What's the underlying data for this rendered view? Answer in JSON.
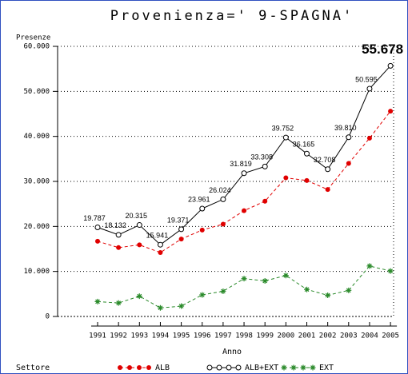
{
  "chart_data": {
    "type": "line",
    "title": "Provenienza=' 9-SPAGNA'",
    "y_label": "Presenze",
    "x_label": "Anno",
    "legend_title": "Settore",
    "grid": true,
    "categories": [
      "1991",
      "1992",
      "1993",
      "1994",
      "1995",
      "1996",
      "1997",
      "1998",
      "1999",
      "2000",
      "2001",
      "2002",
      "2003",
      "2004",
      "2005"
    ],
    "ylim": [
      0,
      60000
    ],
    "yticks": [
      {
        "value": 0,
        "label": "0"
      },
      {
        "value": 10000,
        "label": "10.000"
      },
      {
        "value": 20000,
        "label": "20.000"
      },
      {
        "value": 30000,
        "label": "30.000"
      },
      {
        "value": 40000,
        "label": "40.000"
      },
      {
        "value": 50000,
        "label": "50.000"
      },
      {
        "value": 60000,
        "label": "60.000"
      }
    ],
    "series": [
      {
        "name": "ALB",
        "color": "#e00000",
        "dash": true,
        "marker": "dot",
        "values": [
          16700,
          15300,
          15900,
          14200,
          17200,
          19200,
          20500,
          23500,
          25600,
          30800,
          30200,
          28200,
          34000,
          39600,
          45600
        ]
      },
      {
        "name": "ALB+EXT",
        "color": "#000000",
        "dash": false,
        "marker": "circle",
        "values": [
          19787,
          18132,
          20315,
          15941,
          19371,
          23961,
          26024,
          31819,
          33308,
          39752,
          36165,
          32708,
          39810,
          50595,
          55678
        ],
        "value_labels": [
          "19.787",
          "18.132",
          "20.315",
          "15.941",
          "19.371",
          "23.961",
          "26.024",
          "31.819",
          "33.308",
          "39.752",
          "36.165",
          "32.708",
          "39.810",
          "50.595",
          "55.678"
        ]
      },
      {
        "name": "EXT",
        "color": "#2a8a2a",
        "dash": true,
        "marker": "star",
        "values": [
          3300,
          3000,
          4500,
          1900,
          2300,
          4800,
          5600,
          8400,
          7900,
          9100,
          6000,
          4700,
          5800,
          11200,
          10100
        ]
      }
    ]
  }
}
